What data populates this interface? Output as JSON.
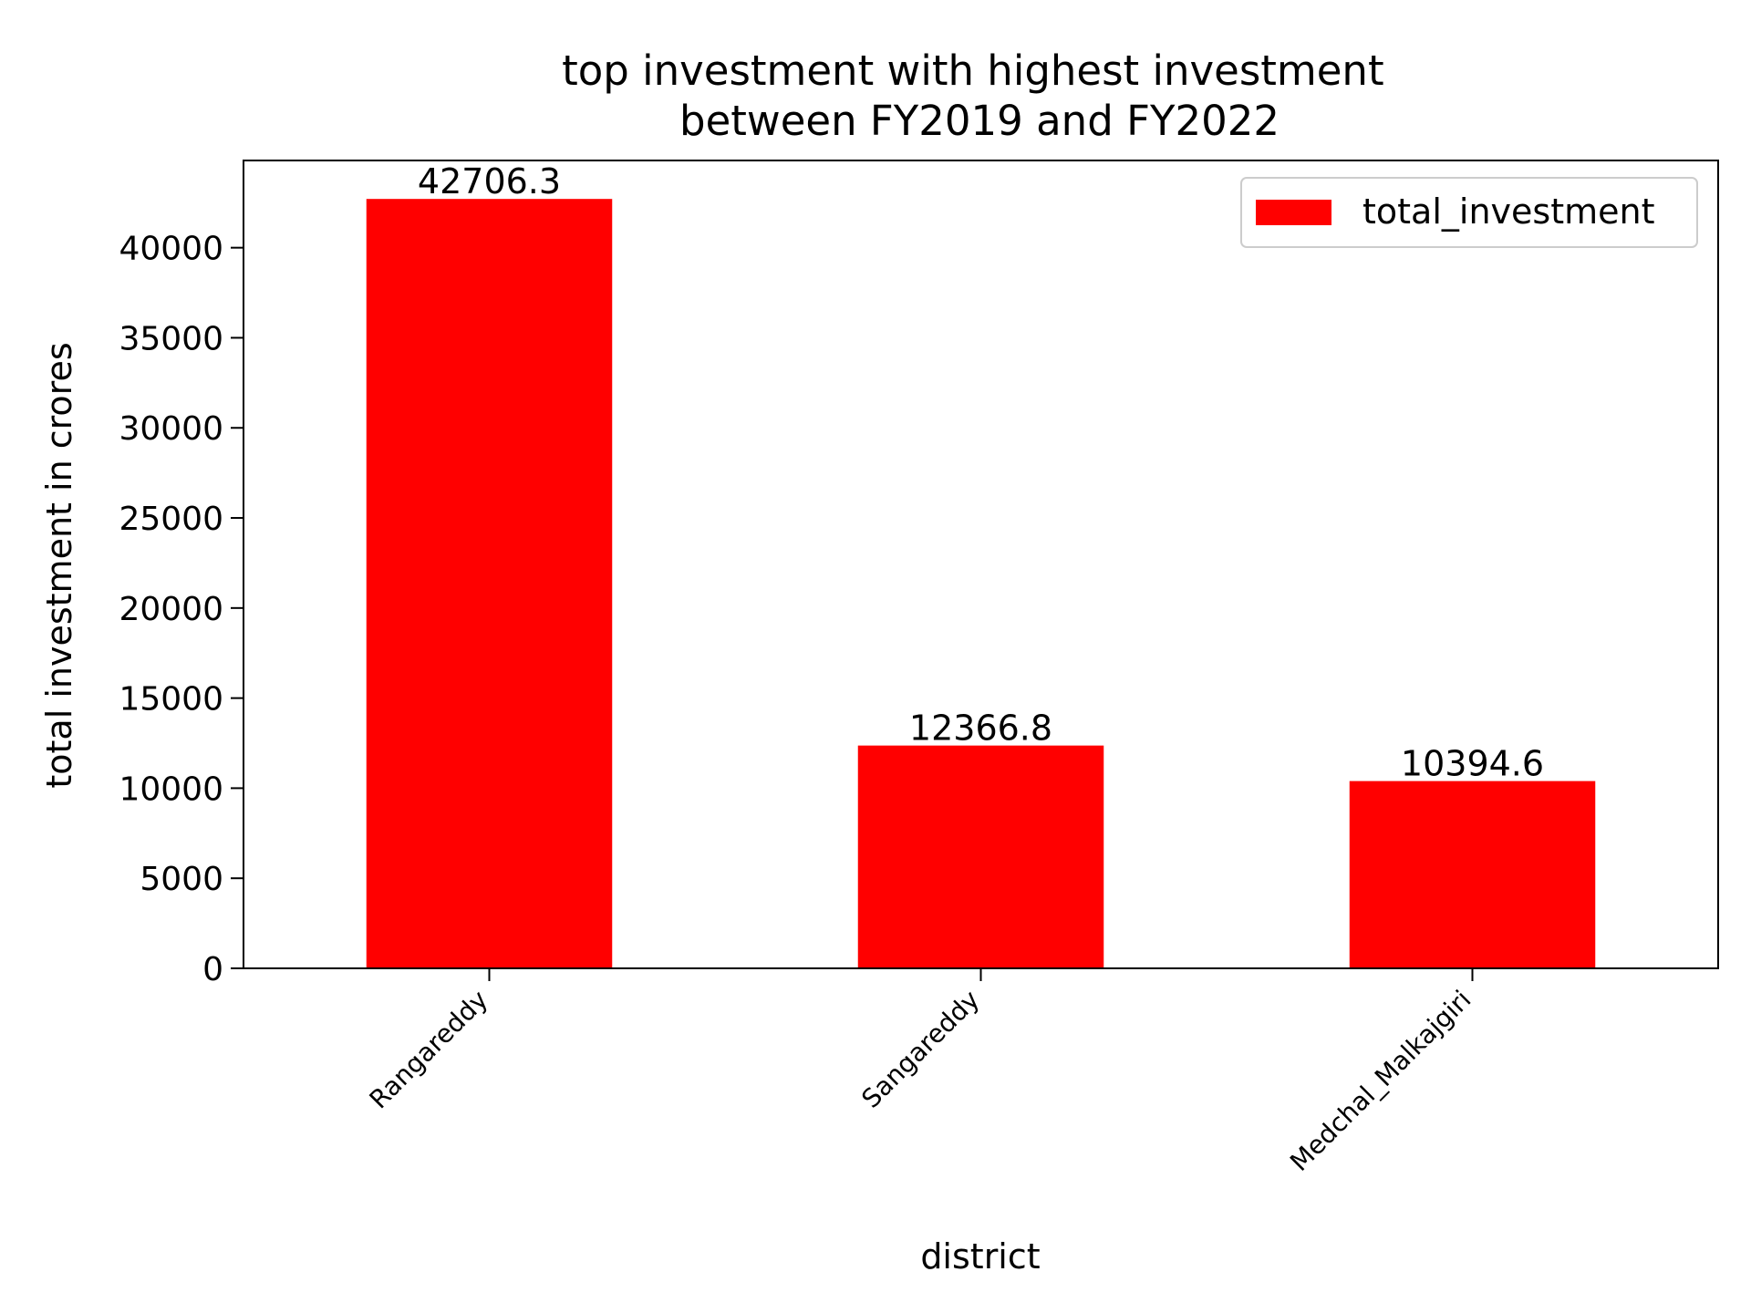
{
  "chart_data": {
    "type": "bar",
    "title": "top investment with highest investment\nbetween FY2019 and FY2022",
    "xlabel": "district",
    "ylabel": "total investment in crores",
    "categories": [
      "Rangareddy",
      "Sangareddy",
      "Medchal_Malkajgiri"
    ],
    "series": [
      {
        "name": "total_investment",
        "values": [
          42706.3,
          12366.8,
          10394.6
        ],
        "color": "#ff0000"
      }
    ],
    "data_labels": [
      "42706.3",
      "12366.8",
      "10394.6"
    ],
    "yticks": [
      0,
      5000,
      10000,
      15000,
      20000,
      25000,
      30000,
      35000,
      40000
    ],
    "ylim": [
      0,
      44841.6
    ],
    "grid": false,
    "legend_position": "top-right"
  }
}
